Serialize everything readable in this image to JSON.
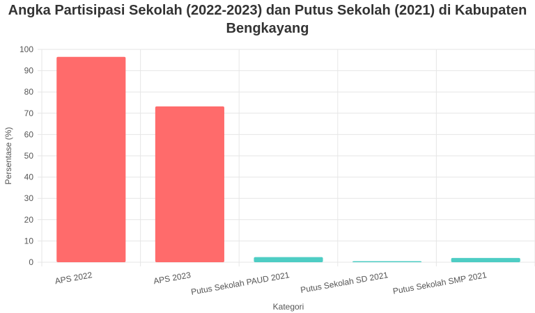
{
  "title_lines": [
    "Angka Partisipasi Sekolah (2022-2023) dan Putus Sekolah (2021) di Kabupaten",
    "Bengkayang"
  ],
  "colors": {
    "aps": "#ff6b6b",
    "putus": "#4ecdc4",
    "grid": "#e6e6e6",
    "text": "#555555"
  },
  "chart_data": {
    "type": "bar",
    "title": "Angka Partisipasi Sekolah (2022-2023) dan Putus Sekolah (2021) di Kabupaten Bengkayang",
    "xlabel": "Kategori",
    "ylabel": "Persentase (%)",
    "categories": [
      "APS 2022",
      "APS 2023",
      "Putus Sekolah PAUD 2021",
      "Putus Sekolah SD 2021",
      "Putus Sekolah SMP 2021"
    ],
    "values": [
      96.5,
      73.2,
      2.4,
      0.4,
      2.0
    ],
    "bar_colors": [
      "#ff6b6b",
      "#ff6b6b",
      "#4ecdc4",
      "#4ecdc4",
      "#4ecdc4"
    ],
    "ylim": [
      0,
      100
    ],
    "yticks": [
      0,
      10,
      20,
      30,
      40,
      50,
      60,
      70,
      80,
      90,
      100
    ],
    "grid": true,
    "legend": "none"
  }
}
